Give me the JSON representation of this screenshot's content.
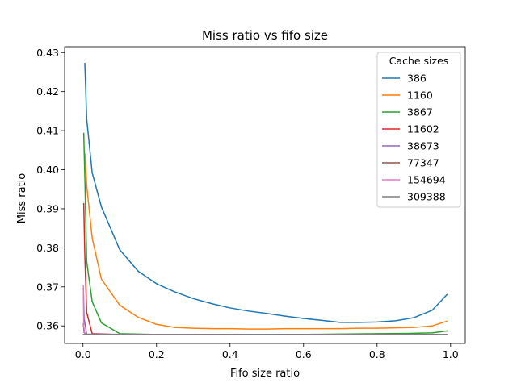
{
  "chart_data": {
    "type": "line",
    "title": "Miss ratio vs fifo size",
    "xlabel": "Fifo size ratio",
    "ylabel": "Miss ratio",
    "xlim": [
      -0.05,
      1.04
    ],
    "ylim": [
      0.3555,
      0.4315
    ],
    "xticks": [
      0.0,
      0.2,
      0.4,
      0.6,
      0.8,
      1.0
    ],
    "xtick_labels": [
      "0.0",
      "0.2",
      "0.4",
      "0.6",
      "0.8",
      "1.0"
    ],
    "yticks": [
      0.36,
      0.37,
      0.38,
      0.39,
      0.4,
      0.41,
      0.42,
      0.43
    ],
    "ytick_labels": [
      "0.36",
      "0.37",
      "0.38",
      "0.39",
      "0.40",
      "0.41",
      "0.42",
      "0.43"
    ],
    "grid": false,
    "legend": {
      "title": "Cache sizes",
      "placement": "top-right"
    },
    "series": [
      {
        "name": "386",
        "color": "#1f77b4",
        "points": [
          [
            0.005,
            0.4272
          ],
          [
            0.01,
            0.413
          ],
          [
            0.025,
            0.3992
          ],
          [
            0.05,
            0.3905
          ],
          [
            0.1,
            0.3795
          ],
          [
            0.15,
            0.374
          ],
          [
            0.2,
            0.3708
          ],
          [
            0.25,
            0.3687
          ],
          [
            0.3,
            0.367
          ],
          [
            0.35,
            0.3657
          ],
          [
            0.4,
            0.3646
          ],
          [
            0.45,
            0.3638
          ],
          [
            0.5,
            0.3632
          ],
          [
            0.55,
            0.3625
          ],
          [
            0.6,
            0.3619
          ],
          [
            0.65,
            0.3614
          ],
          [
            0.7,
            0.3609
          ],
          [
            0.75,
            0.3609
          ],
          [
            0.8,
            0.361
          ],
          [
            0.85,
            0.3613
          ],
          [
            0.9,
            0.3621
          ],
          [
            0.95,
            0.364
          ],
          [
            0.99,
            0.368
          ]
        ]
      },
      {
        "name": "1160",
        "color": "#ff7f0e",
        "points": [
          [
            0.005,
            0.404
          ],
          [
            0.01,
            0.396
          ],
          [
            0.025,
            0.3825
          ],
          [
            0.05,
            0.372
          ],
          [
            0.1,
            0.3653
          ],
          [
            0.15,
            0.3622
          ],
          [
            0.2,
            0.3604
          ],
          [
            0.25,
            0.3596
          ],
          [
            0.3,
            0.3594
          ],
          [
            0.35,
            0.3593
          ],
          [
            0.4,
            0.3593
          ],
          [
            0.45,
            0.3592
          ],
          [
            0.5,
            0.3592
          ],
          [
            0.55,
            0.3593
          ],
          [
            0.6,
            0.3593
          ],
          [
            0.65,
            0.3593
          ],
          [
            0.7,
            0.3593
          ],
          [
            0.75,
            0.3594
          ],
          [
            0.8,
            0.3594
          ],
          [
            0.85,
            0.3595
          ],
          [
            0.9,
            0.3596
          ],
          [
            0.95,
            0.36
          ],
          [
            0.99,
            0.3612
          ]
        ]
      },
      {
        "name": "3867",
        "color": "#2ca02c",
        "points": [
          [
            0.002,
            0.4093
          ],
          [
            0.005,
            0.398
          ],
          [
            0.01,
            0.3765
          ],
          [
            0.025,
            0.3662
          ],
          [
            0.05,
            0.3608
          ],
          [
            0.1,
            0.358
          ],
          [
            0.2,
            0.3578
          ],
          [
            0.4,
            0.3578
          ],
          [
            0.6,
            0.3578
          ],
          [
            0.8,
            0.358
          ],
          [
            0.9,
            0.3581
          ],
          [
            0.95,
            0.3582
          ],
          [
            0.99,
            0.3587
          ]
        ]
      },
      {
        "name": "11602",
        "color": "#d62728",
        "points": [
          [
            0.002,
            0.3913
          ],
          [
            0.005,
            0.378
          ],
          [
            0.01,
            0.3635
          ],
          [
            0.025,
            0.358
          ],
          [
            0.1,
            0.3578
          ],
          [
            0.5,
            0.3578
          ],
          [
            0.99,
            0.3578
          ]
        ]
      },
      {
        "name": "38673",
        "color": "#9467bd",
        "points": [
          [
            0.001,
            0.3695
          ],
          [
            0.003,
            0.362
          ],
          [
            0.01,
            0.3579
          ],
          [
            0.1,
            0.3578
          ],
          [
            0.99,
            0.3578
          ]
        ]
      },
      {
        "name": "77347",
        "color": "#8c564b",
        "points": [
          [
            0.001,
            0.3605
          ],
          [
            0.003,
            0.3583
          ],
          [
            0.01,
            0.3578
          ],
          [
            0.99,
            0.3578
          ]
        ]
      },
      {
        "name": "154694",
        "color": "#e377c2",
        "points": [
          [
            0.001,
            0.3702
          ],
          [
            0.002,
            0.36
          ],
          [
            0.005,
            0.3578
          ],
          [
            0.99,
            0.3578
          ]
        ]
      },
      {
        "name": "309388",
        "color": "#7f7f7f",
        "points": [
          [
            0.001,
            0.3578
          ],
          [
            0.99,
            0.3578
          ]
        ]
      }
    ]
  }
}
